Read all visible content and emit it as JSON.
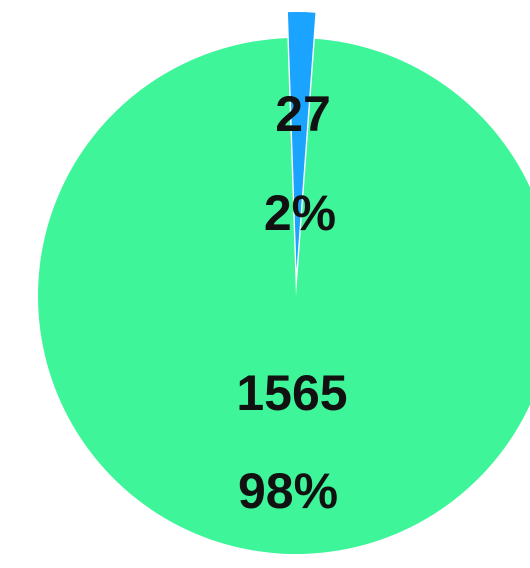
{
  "chart_data": {
    "type": "pie",
    "slices": [
      {
        "value": 27,
        "value_label": "27",
        "percent_label": "2%",
        "color": "#1aa3ff",
        "exploded": true
      },
      {
        "value": 1565,
        "value_label": "1565",
        "percent_label": "98%",
        "color": "#3ef599",
        "exploded": false
      }
    ]
  }
}
